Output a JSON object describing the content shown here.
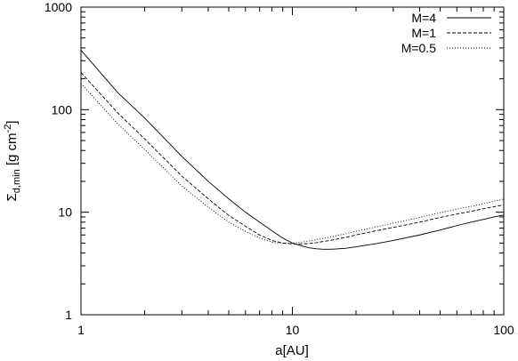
{
  "chart_data": {
    "type": "line",
    "xlabel": "a[AU]",
    "ylabel": {
      "base": "Σ",
      "subscript": "d,min",
      "unit": " [g cm",
      "exponent": "-2",
      "close": "]"
    },
    "x_scale": "log",
    "y_scale": "log",
    "xlim": [
      1,
      100
    ],
    "ylim": [
      1,
      1000
    ],
    "x_ticks": [
      "1",
      "10",
      "100"
    ],
    "y_ticks": [
      "1",
      "10",
      "100",
      "1000"
    ],
    "grid": false,
    "legend_position": "top-right",
    "series": [
      {
        "name": "M=4",
        "style": "solid",
        "x": [
          1,
          1.5,
          2,
          3,
          4,
          5,
          6,
          7,
          8,
          9,
          10,
          11,
          12,
          13,
          14,
          15,
          16,
          18,
          20,
          25,
          30,
          40,
          50,
          60,
          70,
          80,
          90,
          100
        ],
        "y": [
          380,
          145,
          83,
          35,
          20,
          13.5,
          10,
          8,
          6.6,
          5.6,
          5.0,
          4.7,
          4.5,
          4.4,
          4.35,
          4.35,
          4.38,
          4.45,
          4.6,
          4.95,
          5.3,
          6.0,
          6.7,
          7.4,
          8.0,
          8.5,
          9.0,
          9.4
        ]
      },
      {
        "name": "M=1",
        "style": "dashed",
        "x": [
          1,
          1.5,
          2,
          3,
          4,
          5,
          6,
          7,
          8,
          9,
          10,
          11,
          12,
          13,
          15,
          18,
          20,
          25,
          30,
          40,
          50,
          60,
          70,
          80,
          90,
          100
        ],
        "y": [
          230,
          92,
          52,
          22.5,
          13.5,
          9.3,
          7.3,
          6.0,
          5.3,
          5.0,
          4.9,
          4.9,
          4.95,
          5.05,
          5.3,
          5.7,
          6.0,
          6.6,
          7.1,
          8.0,
          8.9,
          9.6,
          10.2,
          10.8,
          11.3,
          11.8
        ]
      },
      {
        "name": "M=0.5",
        "style": "dotted",
        "x": [
          1,
          1.5,
          2,
          3,
          4,
          5,
          6,
          7,
          8,
          9,
          10,
          11,
          12,
          15,
          18,
          20,
          25,
          30,
          40,
          50,
          60,
          70,
          80,
          90,
          100
        ],
        "y": [
          180,
          72,
          41,
          18,
          11.2,
          8.0,
          6.5,
          5.6,
          5.1,
          4.95,
          5.0,
          5.1,
          5.25,
          5.7,
          6.2,
          6.5,
          7.2,
          7.8,
          8.9,
          9.9,
          10.7,
          11.4,
          12.1,
          12.8,
          13.4
        ]
      }
    ]
  }
}
